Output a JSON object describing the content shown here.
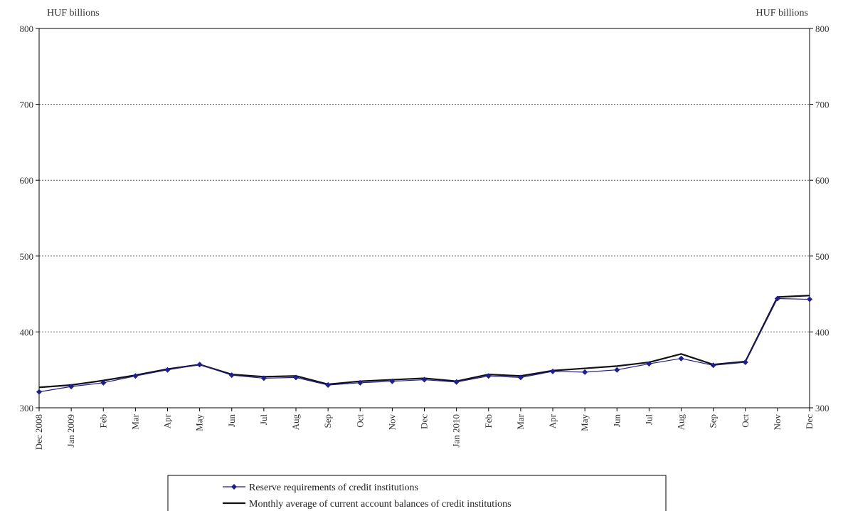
{
  "chart_data": {
    "type": "line",
    "left_axis_unit": "HUF billions",
    "right_axis_unit": "HUF billions",
    "ylim": [
      300,
      800
    ],
    "yticks": [
      300,
      400,
      500,
      600,
      700,
      800
    ],
    "grid": true,
    "legend_position": "bottom-center",
    "categories": [
      "Dec 2008",
      "Jan 2009",
      "Feb",
      "Mar",
      "Apr",
      "May",
      "Jun",
      "Jul",
      "Aug",
      "Sep",
      "Oct",
      "Nov",
      "Dec",
      "Jan 2010",
      "Feb",
      "Mar",
      "Apr",
      "May",
      "Jun",
      "Jul",
      "Aug",
      "Sep",
      "Oct",
      "Nov",
      "Dec"
    ],
    "series": [
      {
        "name": "Reserve requirements of credit institutions",
        "color": "#1f1f8f",
        "marker": "diamond",
        "values": [
          321,
          328,
          333,
          342,
          350,
          357,
          343,
          339,
          340,
          330,
          333,
          335,
          337,
          334,
          342,
          340,
          348,
          347,
          350,
          358,
          365,
          356,
          360,
          444,
          443
        ]
      },
      {
        "name": "Monthly average of current account balances of credit institutions",
        "color": "#111111",
        "marker": "none",
        "values": [
          327,
          330,
          336,
          343,
          351,
          357,
          344,
          341,
          342,
          331,
          335,
          337,
          339,
          335,
          344,
          342,
          349,
          352,
          355,
          360,
          371,
          357,
          361,
          446,
          448
        ]
      }
    ]
  }
}
